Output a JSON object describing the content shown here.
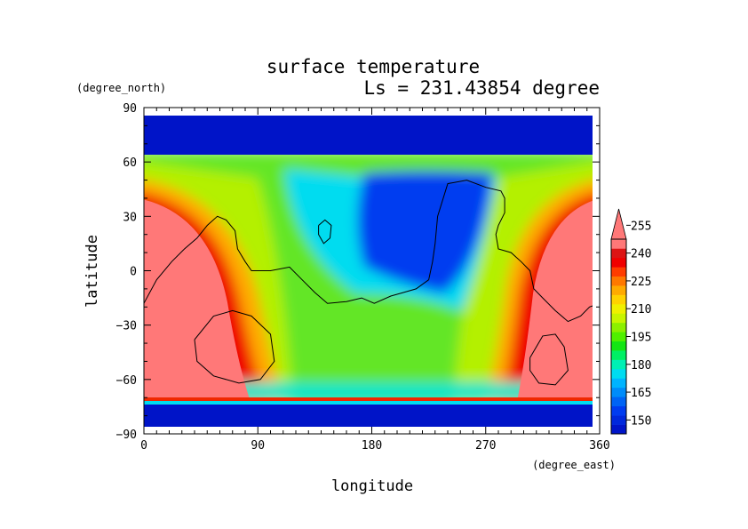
{
  "chart_data": {
    "type": "heatmap",
    "title": "surface temperature",
    "subtitle": "Ls = 231.43854 degree",
    "xlabel": "longitude",
    "ylabel": "latitude",
    "x_units": "(degree_east)",
    "y_units": "(degree_north)",
    "xlim": [
      0,
      360
    ],
    "ylim": [
      -90,
      90
    ],
    "x_ticks": [
      0,
      90,
      180,
      270,
      360
    ],
    "y_ticks": [
      90,
      60,
      30,
      0,
      -30,
      -60,
      -90
    ],
    "colorbar": {
      "levels": [
        140,
        145,
        150,
        155,
        160,
        165,
        170,
        175,
        180,
        185,
        190,
        195,
        200,
        205,
        210,
        215,
        220,
        225,
        230,
        235,
        240,
        245,
        250,
        255,
        260
      ],
      "tick_labels": [
        150,
        165,
        180,
        195,
        210,
        225,
        240,
        255
      ],
      "extend": "max",
      "colors": [
        "#0014c8",
        "#0028dc",
        "#003cf0",
        "#0064f5",
        "#008cfa",
        "#00b4ff",
        "#00dcf0",
        "#00f0b4",
        "#00f064",
        "#14e614",
        "#50f000",
        "#8cf000",
        "#c8f500",
        "#f0f000",
        "#ffd200",
        "#ffaa00",
        "#ff7800",
        "#ff3c00",
        "#f00000",
        "#dc1414",
        "#ff7878"
      ]
    },
    "field_summary": {
      "north_polar_cap_lat": 62,
      "south_polar_cap_lat": -73,
      "warm_regions": [
        {
          "lon_range": [
            0,
            60
          ],
          "lat_range": [
            -70,
            40
          ],
          "value": 260
        },
        {
          "lon_range": [
            300,
            360
          ],
          "lat_range": [
            -70,
            40
          ],
          "value": 260
        }
      ],
      "cold_basin": {
        "lon_range": [
          140,
          260
        ],
        "lat_range": [
          -20,
          50
        ],
        "value": 150
      }
    },
    "contours": [
      {
        "name": "topography-main",
        "points": [
          [
            0,
            -18
          ],
          [
            10,
            -5
          ],
          [
            22,
            5
          ],
          [
            32,
            12
          ],
          [
            42,
            18
          ],
          [
            50,
            25
          ],
          [
            58,
            30
          ],
          [
            65,
            28
          ],
          [
            72,
            22
          ],
          [
            74,
            12
          ],
          [
            80,
            5
          ],
          [
            85,
            0
          ],
          [
            100,
            0
          ],
          [
            115,
            2
          ],
          [
            125,
            -5
          ],
          [
            135,
            -12
          ],
          [
            145,
            -18
          ],
          [
            160,
            -17
          ],
          [
            172,
            -15
          ],
          [
            182,
            -18
          ],
          [
            195,
            -14
          ],
          [
            205,
            -12
          ],
          [
            215,
            -10
          ],
          [
            225,
            -5
          ],
          [
            228,
            5
          ],
          [
            230,
            15
          ],
          [
            232,
            30
          ],
          [
            240,
            48
          ],
          [
            255,
            50
          ],
          [
            270,
            46
          ],
          [
            282,
            44
          ],
          [
            285,
            40
          ],
          [
            285,
            32
          ],
          [
            280,
            25
          ],
          [
            278,
            20
          ],
          [
            280,
            12
          ],
          [
            290,
            10
          ],
          [
            298,
            5
          ],
          [
            305,
            0
          ],
          [
            308,
            -10
          ],
          [
            315,
            -15
          ],
          [
            325,
            -22
          ],
          [
            335,
            -28
          ],
          [
            345,
            -25
          ],
          [
            352,
            -20
          ],
          [
            360,
            -18
          ]
        ]
      },
      {
        "name": "basin-south-west",
        "points": [
          [
            40,
            -38
          ],
          [
            55,
            -25
          ],
          [
            70,
            -22
          ],
          [
            85,
            -25
          ],
          [
            100,
            -35
          ],
          [
            103,
            -50
          ],
          [
            92,
            -60
          ],
          [
            75,
            -62
          ],
          [
            55,
            -58
          ],
          [
            42,
            -50
          ],
          [
            40,
            -38
          ]
        ]
      },
      {
        "name": "basin-south-east",
        "points": [
          [
            305,
            -48
          ],
          [
            315,
            -36
          ],
          [
            325,
            -35
          ],
          [
            332,
            -42
          ],
          [
            335,
            -55
          ],
          [
            325,
            -63
          ],
          [
            312,
            -62
          ],
          [
            305,
            -55
          ],
          [
            305,
            -48
          ]
        ]
      },
      {
        "name": "crater-small",
        "points": [
          [
            138,
            25
          ],
          [
            143,
            28
          ],
          [
            148,
            25
          ],
          [
            147,
            18
          ],
          [
            142,
            15
          ],
          [
            138,
            20
          ],
          [
            138,
            25
          ]
        ]
      }
    ]
  }
}
